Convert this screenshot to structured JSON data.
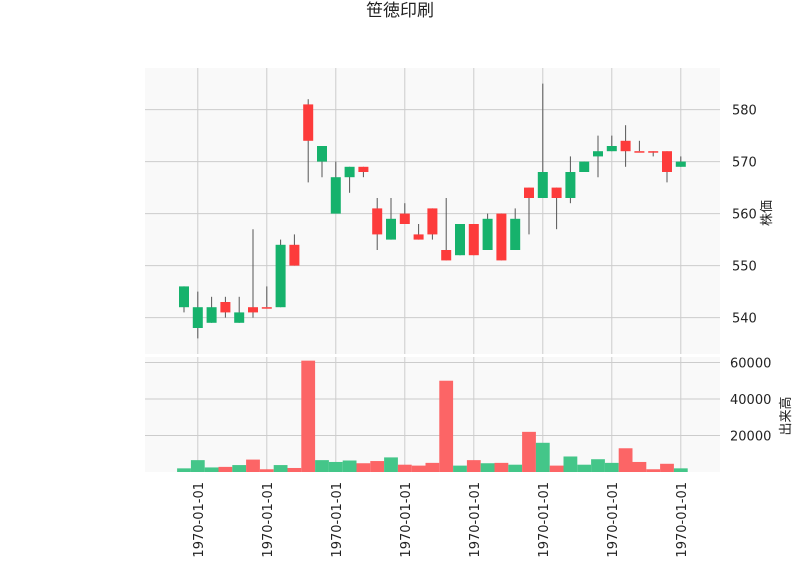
{
  "chart_data": {
    "type": "candlestick",
    "title": "笹徳印刷",
    "price_axis": {
      "label": "株価",
      "ticks": [
        540,
        550,
        560,
        570,
        580
      ],
      "range": [
        533,
        588
      ]
    },
    "volume_axis": {
      "label": "出来高",
      "ticks": [
        20000,
        40000,
        60000
      ],
      "tick_labels": [
        "20000",
        "40000",
        "60000"
      ],
      "range": [
        0,
        63000
      ]
    },
    "x_tick_labels": [
      "1970-01-01",
      "1970-01-01",
      "1970-01-01",
      "1970-01-01",
      "1970-01-01",
      "1970-01-01",
      "1970-01-01",
      "1970-01-01"
    ],
    "x_tick_positions": [
      1,
      6,
      11,
      16,
      21,
      26,
      31,
      36
    ],
    "colors": {
      "up": "#fd3b3b",
      "down": "#16b26c",
      "volume_up": "#fc6566",
      "volume_down": "#44c689",
      "wick": "#555555",
      "panel_bg": "#f9f9f9"
    },
    "grid": true,
    "candles": [
      {
        "open": 546,
        "high": 546,
        "low": 541,
        "close": 542,
        "volume": 2000
      },
      {
        "open": 542,
        "high": 545,
        "low": 536,
        "close": 538,
        "volume": 6500
      },
      {
        "open": 542,
        "high": 544,
        "low": 539,
        "close": 539,
        "volume": 2500
      },
      {
        "open": 541,
        "high": 544,
        "low": 540,
        "close": 543,
        "volume": 2800
      },
      {
        "open": 541,
        "high": 544,
        "low": 539,
        "close": 539,
        "volume": 3800
      },
      {
        "open": 541,
        "high": 557,
        "low": 540,
        "close": 542,
        "volume": 6800
      },
      {
        "open": 542,
        "high": 546,
        "low": 542,
        "close": 542,
        "volume": 1500
      },
      {
        "open": 554,
        "high": 555,
        "low": 542,
        "close": 542,
        "volume": 3800
      },
      {
        "open": 550,
        "high": 556,
        "low": 550,
        "close": 554,
        "volume": 2200
      },
      {
        "open": 574,
        "high": 582,
        "low": 566,
        "close": 581,
        "volume": 61000
      },
      {
        "open": 573,
        "high": 573,
        "low": 567,
        "close": 570,
        "volume": 6500
      },
      {
        "open": 567,
        "high": 570,
        "low": 560,
        "close": 560,
        "volume": 5500
      },
      {
        "open": 569,
        "high": 569,
        "low": 564,
        "close": 567,
        "volume": 6300
      },
      {
        "open": 568,
        "high": 569,
        "low": 567,
        "close": 569,
        "volume": 4800
      },
      {
        "open": 556,
        "high": 563,
        "low": 553,
        "close": 561,
        "volume": 6000
      },
      {
        "open": 559,
        "high": 563,
        "low": 555,
        "close": 555,
        "volume": 8000
      },
      {
        "open": 558,
        "high": 562,
        "low": 558,
        "close": 560,
        "volume": 4000
      },
      {
        "open": 555,
        "high": 558,
        "low": 555,
        "close": 556,
        "volume": 3500
      },
      {
        "open": 556,
        "high": 561,
        "low": 555,
        "close": 561,
        "volume": 5000
      },
      {
        "open": 551,
        "high": 563,
        "low": 551,
        "close": 553,
        "volume": 50000
      },
      {
        "open": 558,
        "high": 558,
        "low": 552,
        "close": 552,
        "volume": 3500
      },
      {
        "open": 552,
        "high": 558,
        "low": 552,
        "close": 558,
        "volume": 6500
      },
      {
        "open": 559,
        "high": 560,
        "low": 553,
        "close": 553,
        "volume": 4800
      },
      {
        "open": 551,
        "high": 560,
        "low": 551,
        "close": 560,
        "volume": 5000
      },
      {
        "open": 559,
        "high": 561,
        "low": 553,
        "close": 553,
        "volume": 4000
      },
      {
        "open": 563,
        "high": 565,
        "low": 556,
        "close": 565,
        "volume": 22000
      },
      {
        "open": 568,
        "high": 585,
        "low": 563,
        "close": 563,
        "volume": 16000
      },
      {
        "open": 563,
        "high": 565,
        "low": 557,
        "close": 565,
        "volume": 3500
      },
      {
        "open": 568,
        "high": 571,
        "low": 562,
        "close": 563,
        "volume": 8500
      },
      {
        "open": 570,
        "high": 570,
        "low": 568,
        "close": 568,
        "volume": 4000
      },
      {
        "open": 572,
        "high": 575,
        "low": 567,
        "close": 571,
        "volume": 7000
      },
      {
        "open": 573,
        "high": 575,
        "low": 572,
        "close": 572,
        "volume": 5000
      },
      {
        "open": 572,
        "high": 577,
        "low": 569,
        "close": 574,
        "volume": 13000
      },
      {
        "open": 572,
        "high": 574,
        "low": 572,
        "close": 572,
        "volume": 5500
      },
      {
        "open": 572,
        "high": 572,
        "low": 571,
        "close": 572,
        "volume": 1500
      },
      {
        "open": 568,
        "high": 572,
        "low": 566,
        "close": 572,
        "volume": 4500
      },
      {
        "open": 570,
        "high": 571,
        "low": 569,
        "close": 569,
        "volume": 2000
      }
    ]
  }
}
